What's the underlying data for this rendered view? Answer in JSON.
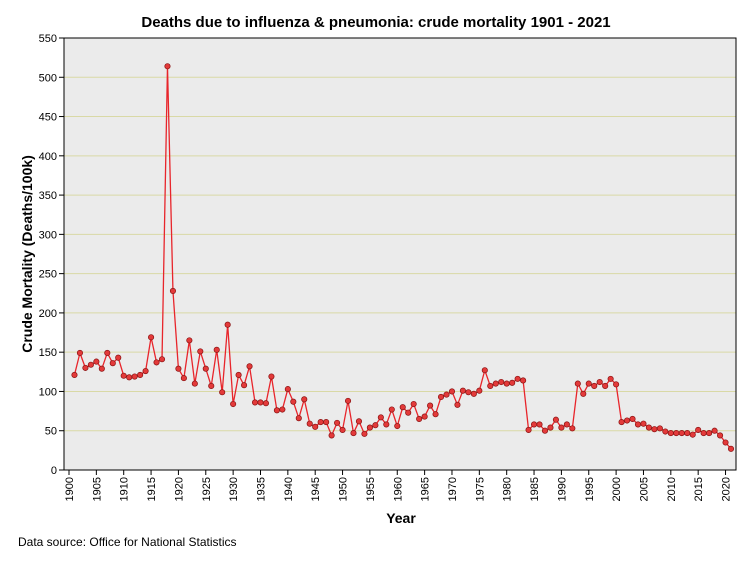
{
  "chart_data": {
    "type": "line",
    "title": "Deaths due to influenza & pneumonia: crude mortality 1901 - 2021",
    "xlabel": "Year",
    "ylabel": "Crude Mortality (Deaths/100k)",
    "source_note": "Data source: Office for National Statistics",
    "xlim": [
      1900,
      2021
    ],
    "ylim": [
      0,
      550
    ],
    "y_ticks": [
      0,
      50,
      100,
      150,
      200,
      250,
      300,
      350,
      400,
      450,
      500,
      550
    ],
    "x_ticks": [
      1900,
      1905,
      1910,
      1915,
      1920,
      1925,
      1930,
      1935,
      1940,
      1945,
      1950,
      1955,
      1960,
      1965,
      1970,
      1975,
      1980,
      1985,
      1990,
      1995,
      2000,
      2005,
      2010,
      2015,
      2020
    ],
    "grid": true,
    "line_color": "#e8252b",
    "marker_color": "#e33a3a",
    "plot_background": "#ebebeb",
    "gridline_color": "#d9d9a6",
    "series": [
      {
        "name": "Crude mortality",
        "x": [
          1901,
          1902,
          1903,
          1904,
          1905,
          1906,
          1907,
          1908,
          1909,
          1910,
          1911,
          1912,
          1913,
          1914,
          1915,
          1916,
          1917,
          1918,
          1919,
          1920,
          1921,
          1922,
          1923,
          1924,
          1925,
          1926,
          1927,
          1928,
          1929,
          1930,
          1931,
          1932,
          1933,
          1934,
          1935,
          1936,
          1937,
          1938,
          1939,
          1940,
          1941,
          1942,
          1943,
          1944,
          1945,
          1946,
          1947,
          1948,
          1949,
          1950,
          1951,
          1952,
          1953,
          1954,
          1955,
          1956,
          1957,
          1958,
          1959,
          1960,
          1961,
          1962,
          1963,
          1964,
          1965,
          1966,
          1967,
          1968,
          1969,
          1970,
          1971,
          1972,
          1973,
          1974,
          1975,
          1976,
          1977,
          1978,
          1979,
          1980,
          1981,
          1982,
          1983,
          1984,
          1985,
          1986,
          1987,
          1988,
          1989,
          1990,
          1991,
          1992,
          1993,
          1994,
          1995,
          1996,
          1997,
          1998,
          1999,
          2000,
          2001,
          2002,
          2003,
          2004,
          2005,
          2006,
          2007,
          2008,
          2009,
          2010,
          2011,
          2012,
          2013,
          2014,
          2015,
          2016,
          2017,
          2018,
          2019,
          2020,
          2021
        ],
        "values": [
          121,
          149,
          130,
          134,
          138,
          129,
          149,
          136,
          143,
          120,
          118,
          119,
          121,
          126,
          169,
          137,
          141,
          514,
          228,
          129,
          117,
          165,
          110,
          151,
          129,
          107,
          153,
          99,
          185,
          84,
          121,
          108,
          132,
          86,
          86,
          85,
          119,
          76,
          77,
          103,
          87,
          66,
          90,
          59,
          55,
          61,
          61,
          44,
          60,
          51,
          88,
          47,
          62,
          46,
          54,
          57,
          67,
          58,
          77,
          56,
          80,
          73,
          84,
          65,
          68,
          82,
          71,
          93,
          96,
          100,
          83,
          101,
          99,
          97,
          101,
          127,
          107,
          110,
          112,
          110,
          111,
          116,
          114,
          51,
          58,
          58,
          50,
          54,
          64,
          54,
          58,
          53,
          110,
          97,
          110,
          107,
          112,
          107,
          116,
          109,
          61,
          63,
          65,
          58,
          59,
          54,
          52,
          53,
          49,
          47,
          47,
          47,
          47,
          45,
          51,
          47,
          47,
          50,
          44,
          35,
          27
        ]
      }
    ]
  }
}
